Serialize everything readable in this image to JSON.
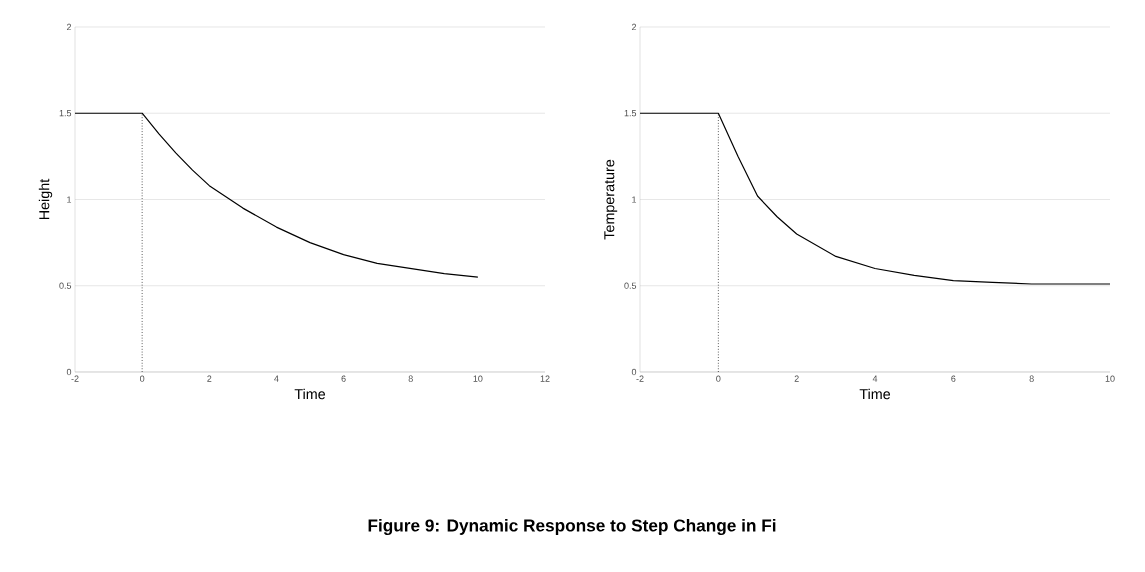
{
  "chart_data": [
    {
      "type": "line",
      "xlabel": "Time",
      "ylabel": "Height",
      "xlim": [
        -2,
        12
      ],
      "xticks": [
        -2,
        0,
        2,
        4,
        6,
        8,
        10,
        12
      ],
      "ylim": [
        0,
        2
      ],
      "yticks": [
        0,
        0.5,
        1,
        1.5,
        2
      ],
      "grid": "y",
      "series": [
        {
          "color": "#000000",
          "line_style": "solid",
          "x": [
            -2,
            -1,
            0,
            0.5,
            1,
            1.5,
            2,
            3,
            4,
            5,
            6,
            7,
            8,
            9,
            10
          ],
          "values": [
            1.5,
            1.5,
            1.5,
            1.38,
            1.27,
            1.17,
            1.08,
            0.95,
            0.84,
            0.75,
            0.68,
            0.63,
            0.6,
            0.57,
            0.55
          ]
        },
        {
          "color": "#000000",
          "line_style": "dotted",
          "x": [
            0,
            0
          ],
          "values": [
            0,
            1.5
          ]
        }
      ],
      "annotations": [
        "Figure 9: Dynamic Response to Step Change in Fi"
      ]
    },
    {
      "type": "line",
      "xlabel": "Time",
      "ylabel": "Temperature",
      "xlim": [
        -2,
        10
      ],
      "xticks": [
        -2,
        0,
        2,
        4,
        6,
        8,
        10
      ],
      "ylim": [
        0,
        2
      ],
      "yticks": [
        0,
        0.5,
        1,
        1.5,
        2
      ],
      "grid": "y",
      "series": [
        {
          "color": "#000000",
          "line_style": "solid",
          "x": [
            -2,
            -1,
            0,
            0.5,
            1,
            1.5,
            2,
            3,
            4,
            5,
            6,
            7,
            8,
            9,
            10
          ],
          "values": [
            1.5,
            1.5,
            1.5,
            1.25,
            1.02,
            0.9,
            0.8,
            0.67,
            0.6,
            0.56,
            0.53,
            0.52,
            0.51,
            0.51,
            0.51
          ]
        },
        {
          "color": "#000000",
          "line_style": "dotted",
          "x": [
            0,
            0
          ],
          "values": [
            0,
            1.5
          ]
        }
      ]
    }
  ]
}
